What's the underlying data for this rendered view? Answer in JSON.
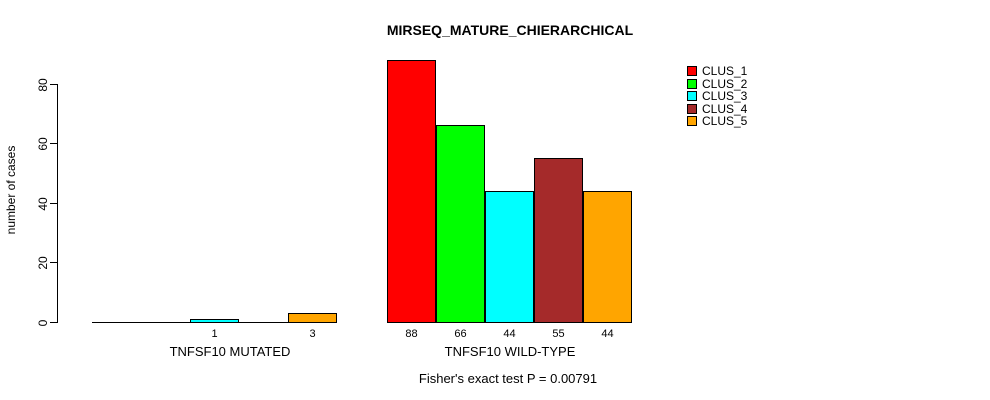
{
  "title": "MIRSEQ_MATURE_CHIERARCHICAL",
  "y_axis": {
    "label": "number of cases",
    "tick_labels": [
      "0",
      "20",
      "40",
      "60",
      "80"
    ]
  },
  "legend": {
    "items": [
      {
        "label": "CLUS_1",
        "color": "#FF0000"
      },
      {
        "label": "CLUS_2",
        "color": "#00FF00"
      },
      {
        "label": "CLUS_3",
        "color": "#00FFFF"
      },
      {
        "label": "CLUS_4",
        "color": "#A52A2A"
      },
      {
        "label": "CLUS_5",
        "color": "#FFA500"
      }
    ]
  },
  "footer": "Fisher's exact test P = 0.00791",
  "chart_data": {
    "type": "bar",
    "title": "MIRSEQ_MATURE_CHIERARCHICAL",
    "xlabel": "",
    "ylabel": "number of cases",
    "yticks": [
      0,
      20,
      40,
      60,
      80
    ],
    "ylim": [
      0,
      88
    ],
    "grid": false,
    "legend_position": "top-right",
    "series_names": [
      "CLUS_1",
      "CLUS_2",
      "CLUS_3",
      "CLUS_4",
      "CLUS_5"
    ],
    "series_colors": [
      "#FF0000",
      "#00FF00",
      "#00FFFF",
      "#A52A2A",
      "#FFA500"
    ],
    "groups": [
      {
        "label": "TNFSF10 MUTATED",
        "values": [
          0,
          0,
          1,
          0,
          3
        ],
        "value_labels": [
          "",
          "",
          "1",
          "",
          "3"
        ]
      },
      {
        "label": "TNFSF10 WILD-TYPE",
        "values": [
          88,
          66,
          44,
          55,
          44
        ],
        "value_labels": [
          "88",
          "66",
          "44",
          "55",
          "44"
        ]
      }
    ],
    "annotation": "Fisher's exact test P = 0.00791"
  }
}
